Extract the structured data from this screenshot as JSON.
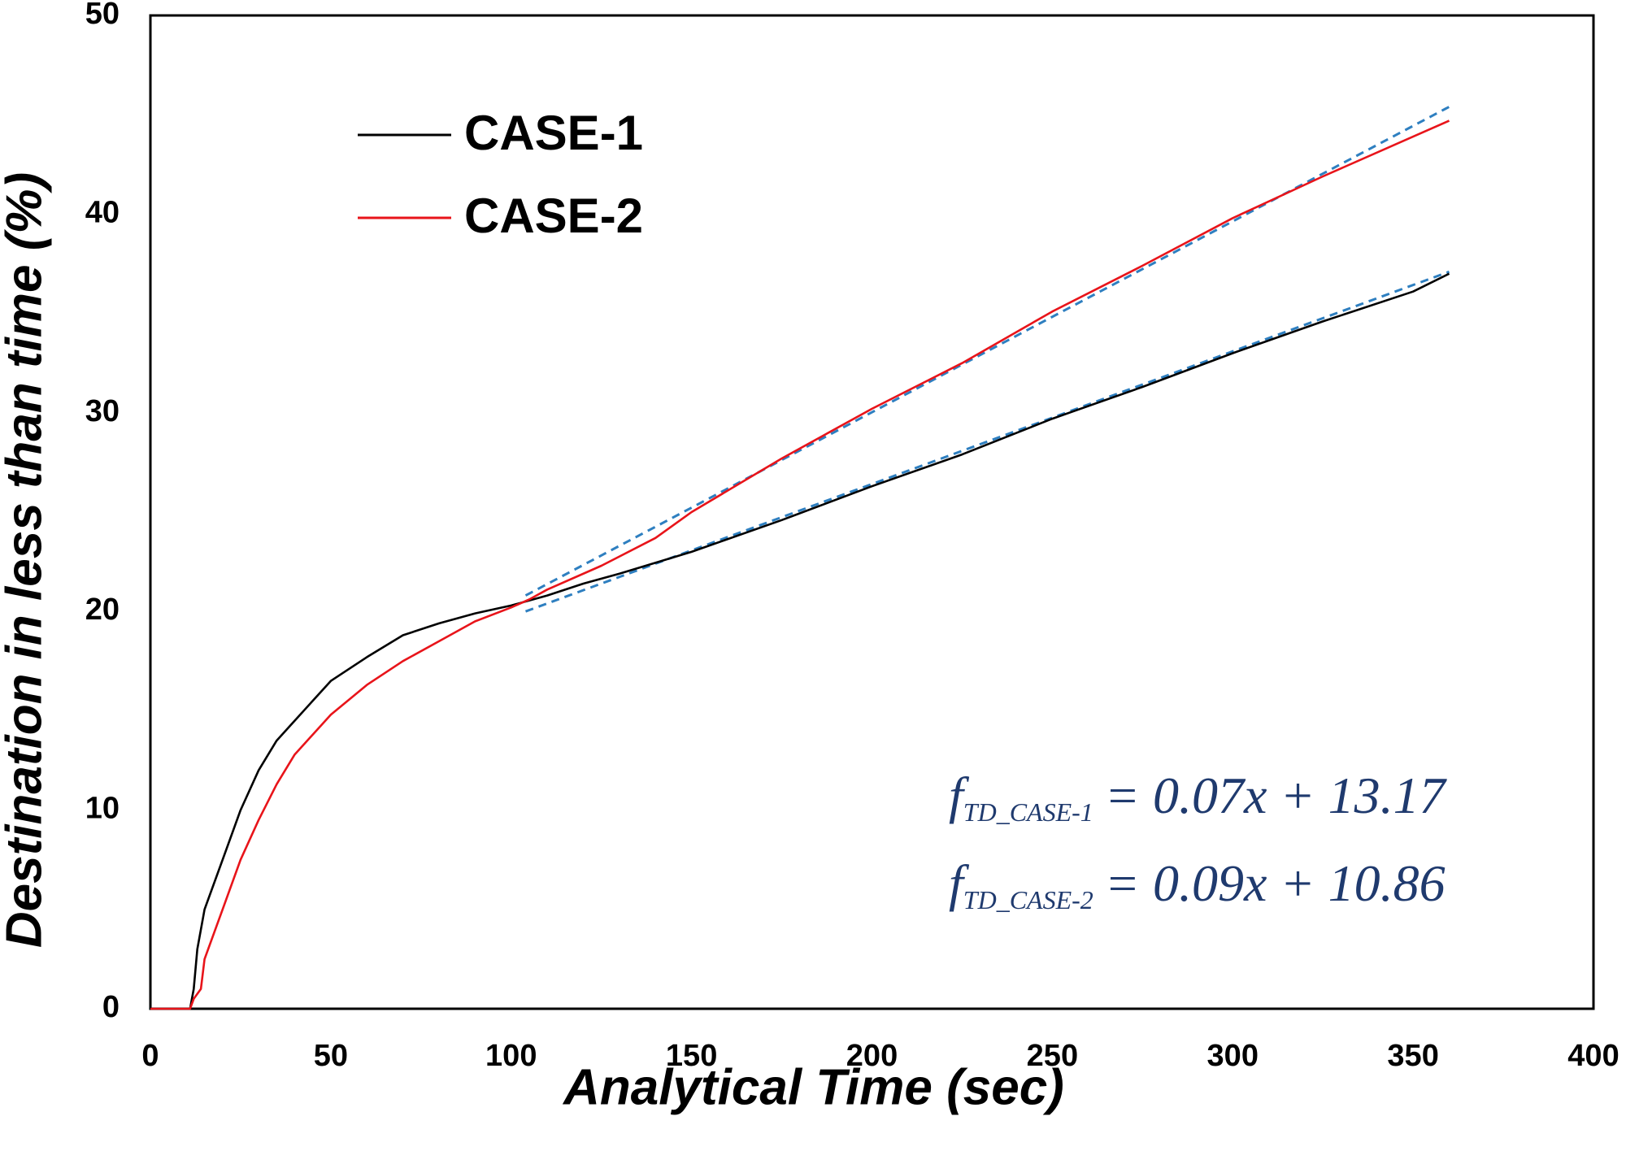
{
  "chart_data": {
    "type": "line",
    "xlabel": "Analytical Time (sec)",
    "ylabel": "Destination in less than time (%)",
    "xlim": [
      0,
      400
    ],
    "ylim": [
      0,
      50
    ],
    "xticks": [
      0,
      50,
      100,
      150,
      200,
      250,
      300,
      350,
      400
    ],
    "yticks": [
      0,
      10,
      20,
      30,
      40,
      50
    ],
    "grid": false,
    "legend": "upper left",
    "series": [
      {
        "name": "CASE-1",
        "color": "#000000",
        "x": [
          0,
          11,
          12,
          13,
          15,
          20,
          25,
          30,
          35,
          40,
          50,
          60,
          70,
          80,
          90,
          100,
          110,
          120,
          130,
          150,
          175,
          200,
          225,
          250,
          275,
          300,
          325,
          350,
          360
        ],
        "values": [
          0,
          0,
          1,
          3,
          5,
          7.5,
          10,
          12,
          13.5,
          14.5,
          16.5,
          17.7,
          18.8,
          19.4,
          19.9,
          20.3,
          20.8,
          21.4,
          21.9,
          23,
          24.6,
          26.3,
          27.9,
          29.7,
          31.3,
          33,
          34.6,
          36.1,
          37.0
        ]
      },
      {
        "name": "CASE-2",
        "color": "#e8141a",
        "x": [
          0,
          11,
          12,
          14,
          15,
          20,
          25,
          30,
          35,
          40,
          50,
          60,
          70,
          80,
          90,
          100,
          105,
          110,
          125,
          140,
          150,
          175,
          200,
          225,
          250,
          275,
          300,
          325,
          350,
          360
        ],
        "values": [
          0,
          0,
          0.5,
          1,
          2.5,
          5,
          7.5,
          9.5,
          11.3,
          12.8,
          14.8,
          16.3,
          17.5,
          18.5,
          19.5,
          20.2,
          20.6,
          21.1,
          22.3,
          23.7,
          25,
          27.7,
          30.2,
          32.5,
          35.1,
          37.4,
          39.8,
          41.9,
          43.9,
          44.7
        ]
      }
    ],
    "trendlines": [
      {
        "color": "#2e7fc0",
        "x": [
          104,
          360
        ],
        "values": [
          20.0,
          37.1
        ]
      },
      {
        "color": "#2e7fc0",
        "x": [
          104,
          360
        ],
        "values": [
          20.8,
          45.4
        ]
      }
    ],
    "annotations": [
      {
        "symbol": "f",
        "subscript": "TD_CASE-1",
        "text": "= 0.07x + 13.17"
      },
      {
        "symbol": "f",
        "subscript": "TD_CASE-2",
        "text": "= 0.09x + 10.86"
      }
    ]
  }
}
